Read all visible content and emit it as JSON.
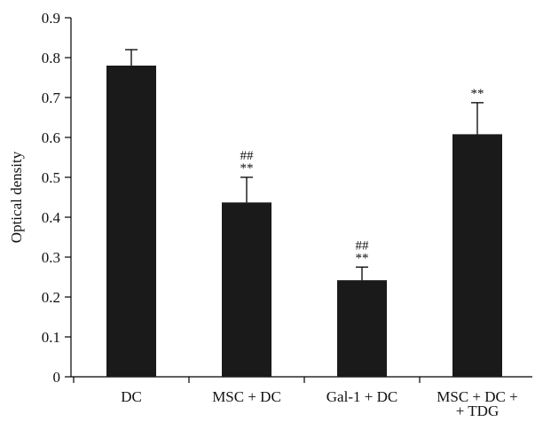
{
  "chart_data": {
    "type": "bar",
    "categories": [
      [
        "DC"
      ],
      [
        "MSC + DC"
      ],
      [
        "Gal-1 + DC"
      ],
      [
        "MSC + DC +",
        "+ TDG"
      ]
    ],
    "values": [
      0.78,
      0.437,
      0.242,
      0.608
    ],
    "error_upper": [
      0.82,
      0.5,
      0.275,
      0.687
    ],
    "annotations": [
      [],
      [
        "##",
        "**"
      ],
      [
        "##",
        "**"
      ],
      [
        "**"
      ]
    ],
    "title": "",
    "xlabel": "",
    "ylabel": "Optical density",
    "ylim": [
      0,
      0.9
    ],
    "yticks": [
      "0",
      "0.1",
      "0.2",
      "0.3",
      "0.4",
      "0.5",
      "0.6",
      "0.7",
      "0.8",
      "0.9"
    ],
    "grid": false,
    "bar_color": "#1a1a1a"
  }
}
